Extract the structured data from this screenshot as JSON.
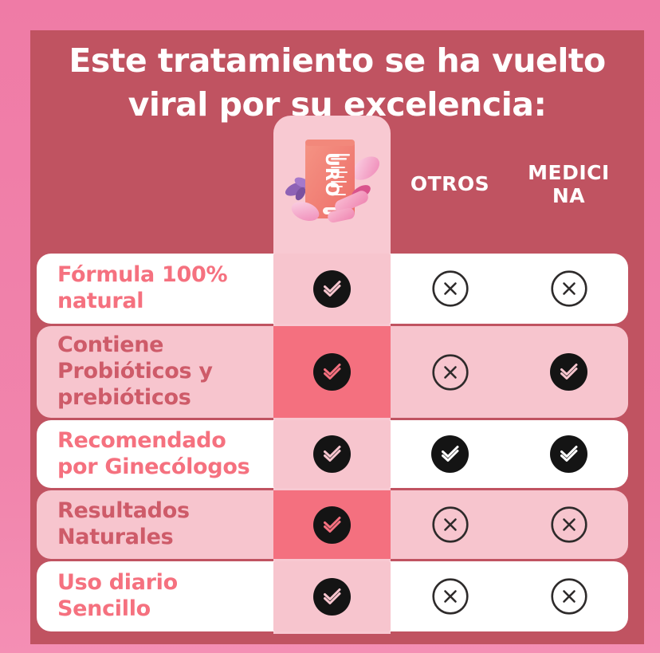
{
  "title": "Este tratamiento se ha vuelto\nviral por su excelencia:",
  "product": {
    "brand": "URO",
    "image_description": "coral supplement jar with rose petals, purple flower and pink capsules"
  },
  "colors": {
    "frame_pink": "#EF7BA6",
    "board_rose": "#C05361",
    "light_pink": "#F7C5CE",
    "strip_pink": "#F8C9D2",
    "coral_cell": "#F4707F",
    "icon_black": "#141414",
    "label_coral": "#F5717F",
    "label_rose": "#CE5B69",
    "cross_stroke": "#2E2B2B",
    "white": "#FFFFFF"
  },
  "table": {
    "columns": [
      {
        "id": "product",
        "label": ""
      },
      {
        "id": "otros",
        "label": "OTROS"
      },
      {
        "id": "medicina",
        "label": "MEDICINA"
      }
    ],
    "rows": [
      {
        "label": "Fórmula 100%\nnatural",
        "variant": "white",
        "product": "check",
        "otros": "cross",
        "medicina": "cross"
      },
      {
        "label": "Contiene\nProbióticos y\nprebióticos",
        "variant": "pink",
        "product": "check",
        "otros": "cross",
        "medicina": "check"
      },
      {
        "label": "Recomendado\npor Ginecólogos",
        "variant": "white",
        "product": "check",
        "otros": "check",
        "medicina": "check"
      },
      {
        "label": "Resultados\nNaturales",
        "variant": "pink",
        "product": "check",
        "otros": "cross",
        "medicina": "cross"
      },
      {
        "label": "Uso diario\nSencillo",
        "variant": "white",
        "product": "check",
        "otros": "cross",
        "medicina": "cross"
      }
    ]
  },
  "icons": {
    "check": "black circle with double check mark",
    "cross": "outlined circle with x mark"
  }
}
